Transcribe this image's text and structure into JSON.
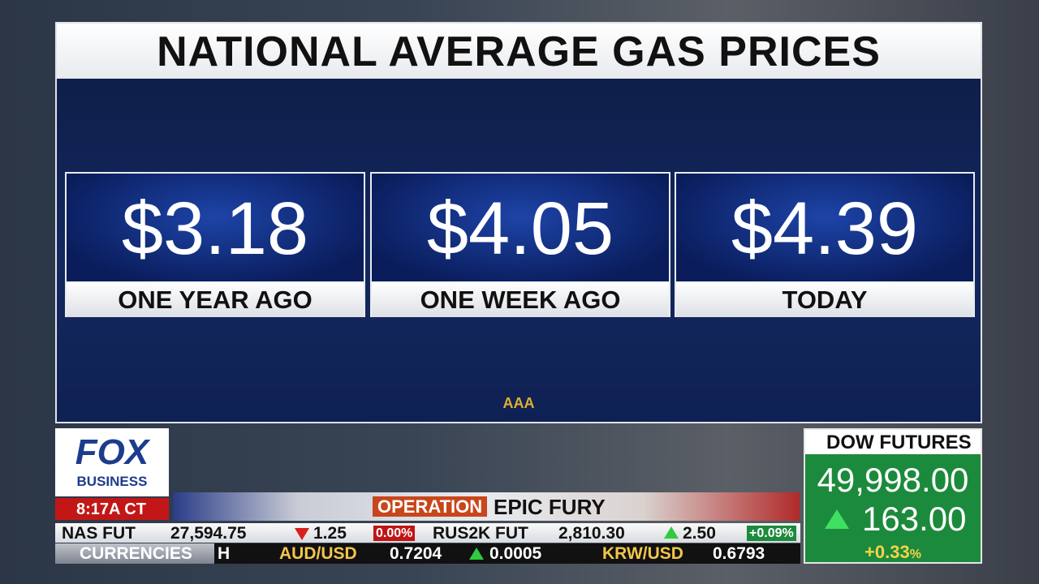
{
  "header": {
    "title": "NATIONAL AVERAGE GAS PRICES"
  },
  "cards": [
    {
      "price": "$3.18",
      "label": "ONE YEAR AGO"
    },
    {
      "price": "$4.05",
      "label": "ONE WEEK AGO"
    },
    {
      "price": "$4.39",
      "label": "TODAY"
    }
  ],
  "source": "AAA",
  "logo": {
    "line1": "FOX",
    "line2": "BUSINESS"
  },
  "clock": "8:17A CT",
  "banner": {
    "prefix": "OPERATION",
    "text": "EPIC FURY"
  },
  "dow": {
    "title": "DOW FUTURES",
    "value": "49,998.00",
    "change": "163.00",
    "percent": "+0.33",
    "percent_sign": "%"
  },
  "ticker": {
    "row1": [
      "NAS FUT",
      "27,594.75",
      "1.25",
      "0.00%",
      "RUS2K FUT",
      "2,810.30",
      "2.50",
      "+0.09%"
    ],
    "row2_label": "CURRENCIES",
    "row2": [
      "H",
      "AUD/USD",
      "0.7204",
      "0.0005",
      "KRW/USD",
      "0.6793"
    ]
  }
}
